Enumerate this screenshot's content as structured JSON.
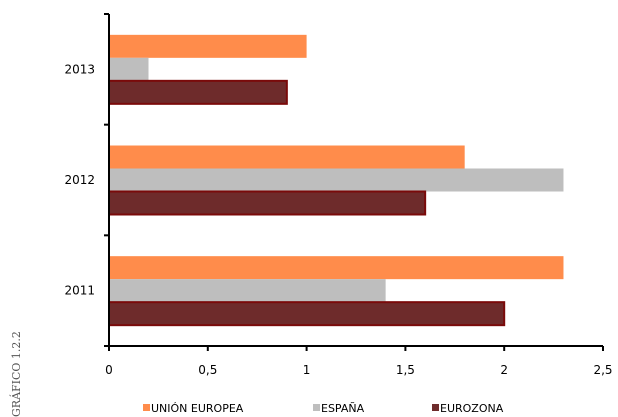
{
  "side_caption": "GRÁFICO 1.2.2",
  "chart_data": {
    "type": "bar",
    "orientation": "horizontal",
    "categories": [
      "2011",
      "2012",
      "2013"
    ],
    "series": [
      {
        "name": "UNIÓN EUROPEA",
        "values": [
          2.3,
          1.8,
          1.0
        ],
        "color": "#FF8C4B"
      },
      {
        "name": "ESPAÑA",
        "values": [
          1.4,
          2.3,
          0.2
        ],
        "color": "#BEBEBE"
      },
      {
        "name": "EUROZONA",
        "values": [
          2.0,
          1.6,
          0.9
        ],
        "color": "#6E2B2B",
        "stroke": "#7A0A0A"
      }
    ],
    "xlim": [
      0,
      2.5
    ],
    "x_ticks": [
      "0",
      "0,5",
      "1",
      "1,5",
      "2",
      "2,5"
    ],
    "grid": false,
    "legend_position": "bottom"
  }
}
